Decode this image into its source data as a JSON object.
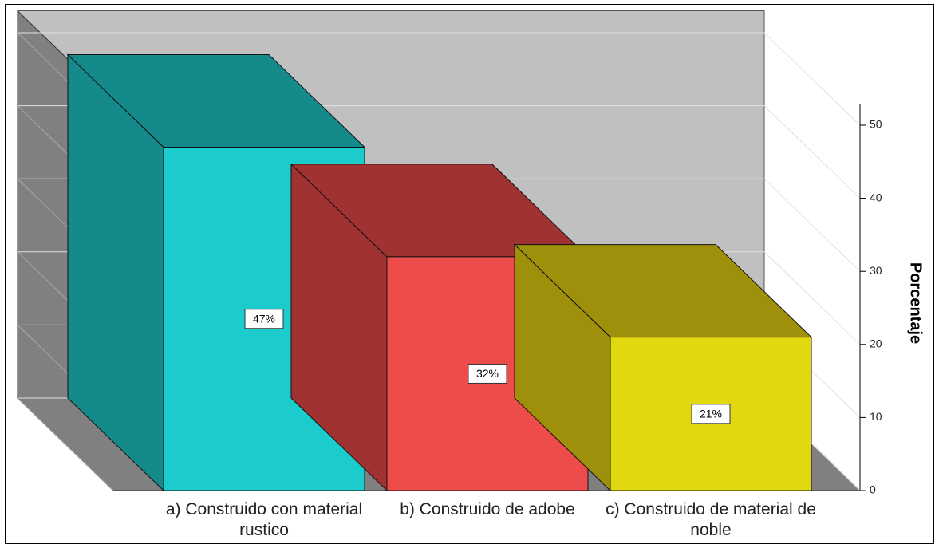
{
  "chart_data": {
    "type": "bar3d",
    "y_axis_label": "Porcentaje",
    "categories": [
      "a) Construido con material rustico",
      "b) Construido de adobe",
      "c) Construido de material de noble"
    ],
    "values": [
      47,
      32,
      21
    ],
    "value_labels": [
      "47%",
      "32%",
      "21%"
    ],
    "colors": [
      "#1ccccc",
      "#ee4b4b",
      "#e2d810"
    ],
    "shade_colors": [
      "#148a8a",
      "#a03232",
      "#9e900a"
    ],
    "ylim": [
      0,
      53
    ],
    "yticks": [
      0,
      10,
      20,
      30,
      40,
      50
    ],
    "grid": true
  }
}
